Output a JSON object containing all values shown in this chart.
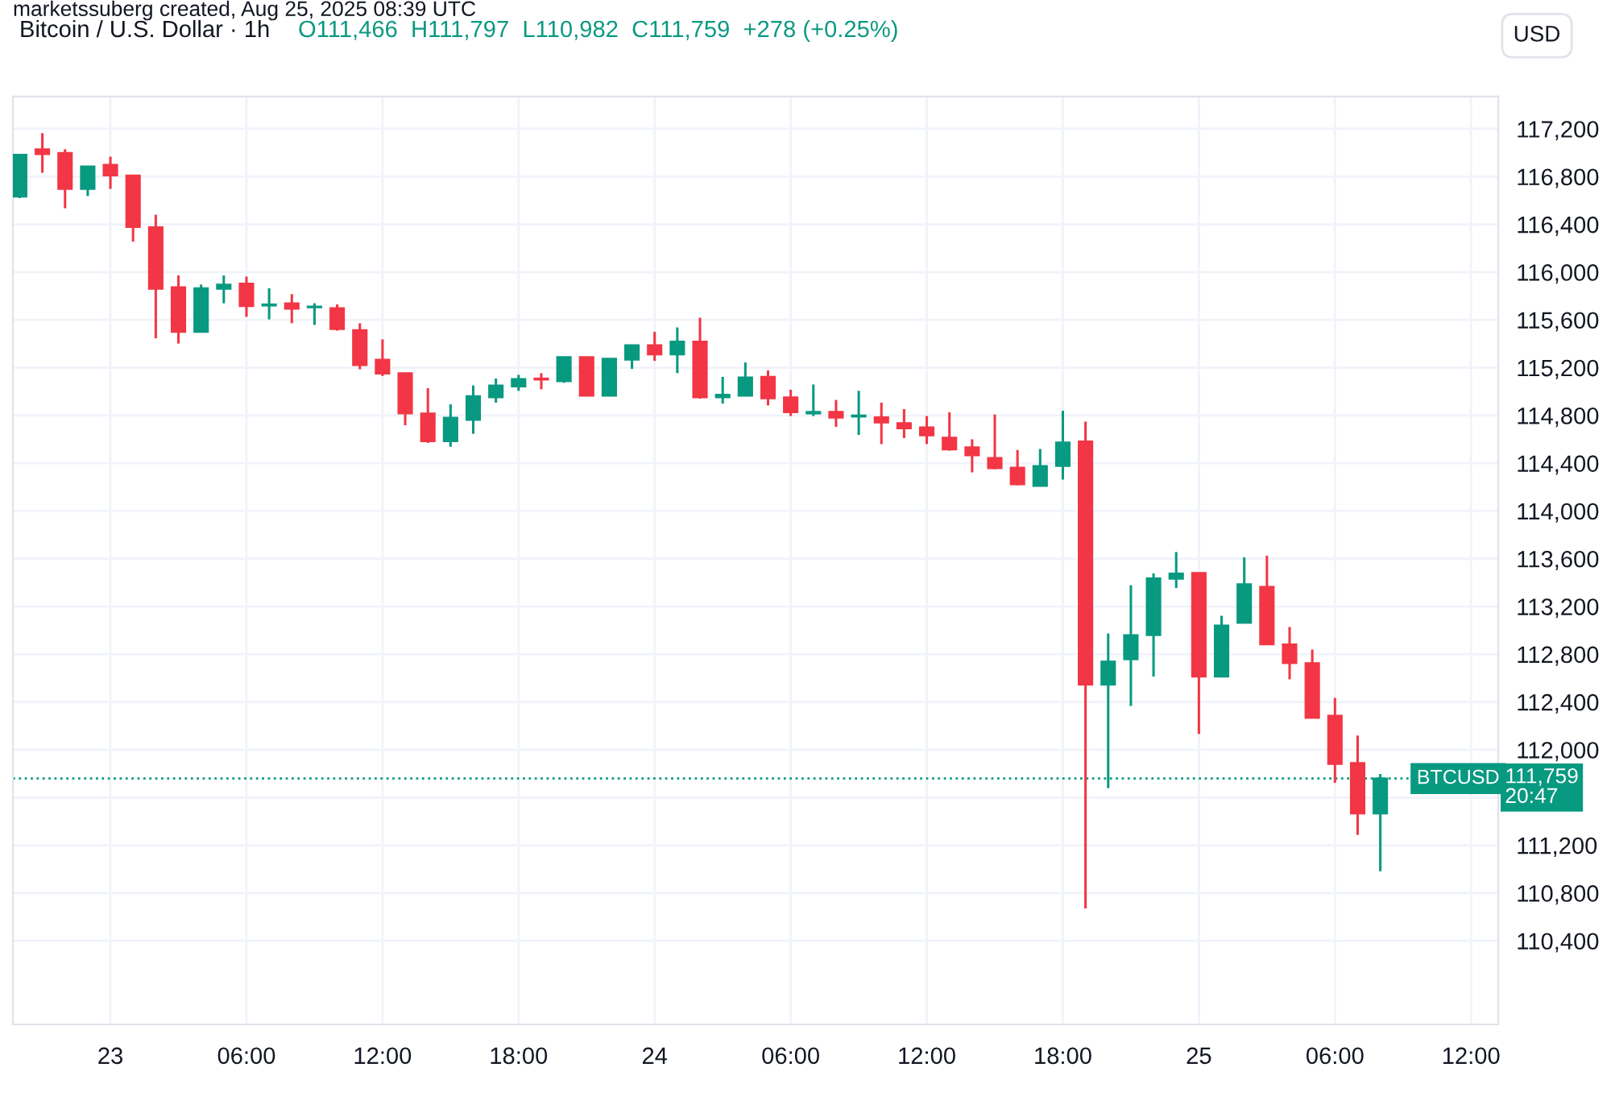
{
  "chart_data": {
    "type": "candlestick",
    "title": "Bitcoin / U.S. Dollar · 1h",
    "subtitle": "O111,466  H111,797  L110,982  C111,759  +278 (+0.25%)",
    "annotations": [
      "marketssuberg created, Aug 25, 2025 08:39 UTC",
      "USD",
      "BTCUSD",
      "20:47"
    ],
    "x": [
      "2025-08-22T20:00",
      "2025-08-22T21:00",
      "2025-08-22T22:00",
      "2025-08-22T23:00",
      "2025-08-23T00:00",
      "2025-08-23T01:00",
      "2025-08-23T02:00",
      "2025-08-23T03:00",
      "2025-08-23T04:00",
      "2025-08-23T05:00",
      "2025-08-23T06:00",
      "2025-08-23T07:00",
      "2025-08-23T08:00",
      "2025-08-23T09:00",
      "2025-08-23T10:00",
      "2025-08-23T11:00",
      "2025-08-23T12:00",
      "2025-08-23T13:00",
      "2025-08-23T14:00",
      "2025-08-23T15:00",
      "2025-08-23T16:00",
      "2025-08-23T17:00",
      "2025-08-23T18:00",
      "2025-08-23T19:00",
      "2025-08-23T20:00",
      "2025-08-23T21:00",
      "2025-08-23T22:00",
      "2025-08-23T23:00",
      "2025-08-24T00:00",
      "2025-08-24T01:00",
      "2025-08-24T02:00",
      "2025-08-24T03:00",
      "2025-08-24T04:00",
      "2025-08-24T05:00",
      "2025-08-24T06:00",
      "2025-08-24T07:00",
      "2025-08-24T08:00",
      "2025-08-24T09:00",
      "2025-08-24T10:00",
      "2025-08-24T11:00",
      "2025-08-24T12:00",
      "2025-08-24T13:00",
      "2025-08-24T14:00",
      "2025-08-24T15:00",
      "2025-08-24T16:00",
      "2025-08-24T17:00",
      "2025-08-24T18:00",
      "2025-08-24T19:00",
      "2025-08-24T20:00",
      "2025-08-24T21:00",
      "2025-08-24T22:00",
      "2025-08-24T23:00",
      "2025-08-25T00:00",
      "2025-08-25T01:00",
      "2025-08-25T02:00",
      "2025-08-25T03:00",
      "2025-08-25T04:00",
      "2025-08-25T05:00",
      "2025-08-25T06:00",
      "2025-08-25T07:00",
      "2025-08-25T08:00"
    ],
    "ohlc": [
      [
        116633,
        116990,
        116620,
        116984
      ],
      [
        117029,
        117164,
        116832,
        116988
      ],
      [
        116998,
        117029,
        116535,
        116697
      ],
      [
        116697,
        116886,
        116637,
        116886
      ],
      [
        116899,
        116967,
        116697,
        116809
      ],
      [
        116809,
        116809,
        116256,
        116377
      ],
      [
        116377,
        116481,
        115446,
        115860
      ],
      [
        115874,
        115972,
        115402,
        115500
      ],
      [
        115500,
        115896,
        115500,
        115865
      ],
      [
        115860,
        115972,
        115739,
        115896
      ],
      [
        115905,
        115963,
        115626,
        115716
      ],
      [
        115720,
        115865,
        115604,
        115730
      ],
      [
        115739,
        115816,
        115572,
        115693
      ],
      [
        115705,
        115739,
        115558,
        115712
      ],
      [
        115698,
        115730,
        115510,
        115523
      ],
      [
        115514,
        115572,
        115186,
        115221
      ],
      [
        115267,
        115437,
        115130,
        115150
      ],
      [
        115154,
        115154,
        114718,
        114816
      ],
      [
        114816,
        115028,
        114570,
        114583
      ],
      [
        114583,
        114893,
        114538,
        114781
      ],
      [
        114762,
        115051,
        114646,
        114961
      ],
      [
        114952,
        115109,
        114907,
        115051
      ],
      [
        115042,
        115140,
        115006,
        115105
      ],
      [
        115109,
        115154,
        115019,
        115100
      ],
      [
        115087,
        115289,
        115073,
        115289
      ],
      [
        115289,
        115289,
        114965,
        114965
      ],
      [
        114965,
        115275,
        114965,
        115275
      ],
      [
        115267,
        115388,
        115190,
        115388
      ],
      [
        115388,
        115500,
        115257,
        115311
      ],
      [
        115311,
        115537,
        115154,
        115419
      ],
      [
        115419,
        115618,
        114940,
        114951
      ],
      [
        114951,
        115123,
        114899,
        114974
      ],
      [
        114965,
        115244,
        114960,
        115119
      ],
      [
        115123,
        115177,
        114884,
        114943
      ],
      [
        114951,
        115015,
        114795,
        114826
      ],
      [
        114816,
        115059,
        114795,
        114830
      ],
      [
        114830,
        114930,
        114704,
        114781
      ],
      [
        114790,
        115006,
        114637,
        114800
      ],
      [
        114785,
        114907,
        114560,
        114741
      ],
      [
        114735,
        114853,
        114610,
        114691
      ],
      [
        114700,
        114795,
        114560,
        114633
      ],
      [
        114614,
        114826,
        114505,
        114515
      ],
      [
        114533,
        114600,
        114323,
        114466
      ],
      [
        114444,
        114808,
        114350,
        114358
      ],
      [
        114363,
        114511,
        114215,
        114223
      ],
      [
        114210,
        114519,
        114205,
        114376
      ],
      [
        114376,
        114839,
        114263,
        114574
      ],
      [
        114583,
        114749,
        110671,
        112546
      ],
      [
        112546,
        112974,
        111679,
        112739
      ],
      [
        112758,
        113378,
        112367,
        112960
      ],
      [
        112960,
        113477,
        112613,
        113436
      ],
      [
        113432,
        113656,
        113355,
        113477
      ],
      [
        113481,
        113481,
        112132,
        112613
      ],
      [
        112613,
        113122,
        112613,
        113041
      ],
      [
        113063,
        113612,
        113063,
        113386
      ],
      [
        113365,
        113625,
        112883,
        112883
      ],
      [
        112883,
        113028,
        112590,
        112725
      ],
      [
        112725,
        112839,
        112267,
        112267
      ],
      [
        112286,
        112434,
        111723,
        111881
      ],
      [
        111890,
        112119,
        111287,
        111466
      ],
      [
        111466,
        111797,
        110982,
        111759
      ]
    ],
    "colors": [
      "#089981",
      "#f23645",
      "#f23645",
      "#089981",
      "#f23645",
      "#f23645",
      "#f23645",
      "#f23645",
      "#089981",
      "#089981",
      "#f23645",
      "#089981",
      "#f23645",
      "#089981",
      "#f23645",
      "#f23645",
      "#f23645",
      "#f23645",
      "#f23645",
      "#089981",
      "#089981",
      "#089981",
      "#089981",
      "#f23645",
      "#089981",
      "#f23645",
      "#089981",
      "#089981",
      "#f23645",
      "#089981",
      "#f23645",
      "#089981",
      "#089981",
      "#f23645",
      "#f23645",
      "#089981",
      "#f23645",
      "#089981",
      "#f23645",
      "#f23645",
      "#f23645",
      "#f23645",
      "#f23645",
      "#f23645",
      "#f23645",
      "#089981",
      "#089981",
      "#f23645",
      "#089981",
      "#089981",
      "#089981",
      "#089981",
      "#f23645",
      "#089981",
      "#089981",
      "#f23645",
      "#f23645",
      "#f23645",
      "#f23645",
      "#f23645",
      "#089981"
    ],
    "xlim": [
      "2025-08-22T19:42",
      "2025-08-25T13:12"
    ],
    "xticks": [
      {
        "value": "2025-08-23T00:00",
        "label": "23"
      },
      {
        "value": "2025-08-23T06:00",
        "label": "06:00"
      },
      {
        "value": "2025-08-23T12:00",
        "label": "12:00"
      },
      {
        "value": "2025-08-23T18:00",
        "label": "18:00"
      },
      {
        "value": "2025-08-24T00:00",
        "label": "24"
      },
      {
        "value": "2025-08-24T06:00",
        "label": "06:00"
      },
      {
        "value": "2025-08-24T12:00",
        "label": "12:00"
      },
      {
        "value": "2025-08-24T18:00",
        "label": "18:00"
      },
      {
        "value": "2025-08-25T00:00",
        "label": "25"
      },
      {
        "value": "2025-08-25T06:00",
        "label": "06:00"
      },
      {
        "value": "2025-08-25T12:00",
        "label": "12:00"
      }
    ],
    "ylim": [
      109700,
      117470
    ],
    "yticks": [
      {
        "value": 110400,
        "label": "110,400"
      },
      {
        "value": 110800,
        "label": "110,800"
      },
      {
        "value": 111200,
        "label": "111,200"
      },
      {
        "value": 111600,
        "label": null
      },
      {
        "value": 112000,
        "label": "112,000"
      },
      {
        "value": 112400,
        "label": "112,400"
      },
      {
        "value": 112800,
        "label": "112,800"
      },
      {
        "value": 113200,
        "label": "113,200"
      },
      {
        "value": 113600,
        "label": "113,600"
      },
      {
        "value": 114000,
        "label": "114,000"
      },
      {
        "value": 114400,
        "label": "114,400"
      },
      {
        "value": 114800,
        "label": "114,800"
      },
      {
        "value": 115200,
        "label": "115,200"
      },
      {
        "value": 115600,
        "label": "115,600"
      },
      {
        "value": 116000,
        "label": "116,000"
      },
      {
        "value": 116400,
        "label": "116,400"
      },
      {
        "value": 116800,
        "label": "116,800"
      },
      {
        "value": 117200,
        "label": "117,200"
      }
    ],
    "ref_lines": [
      {
        "axis": "y",
        "value": 111759,
        "label": "111,759",
        "color": "#089981",
        "line_style": "dotted"
      }
    ],
    "grid": true
  }
}
